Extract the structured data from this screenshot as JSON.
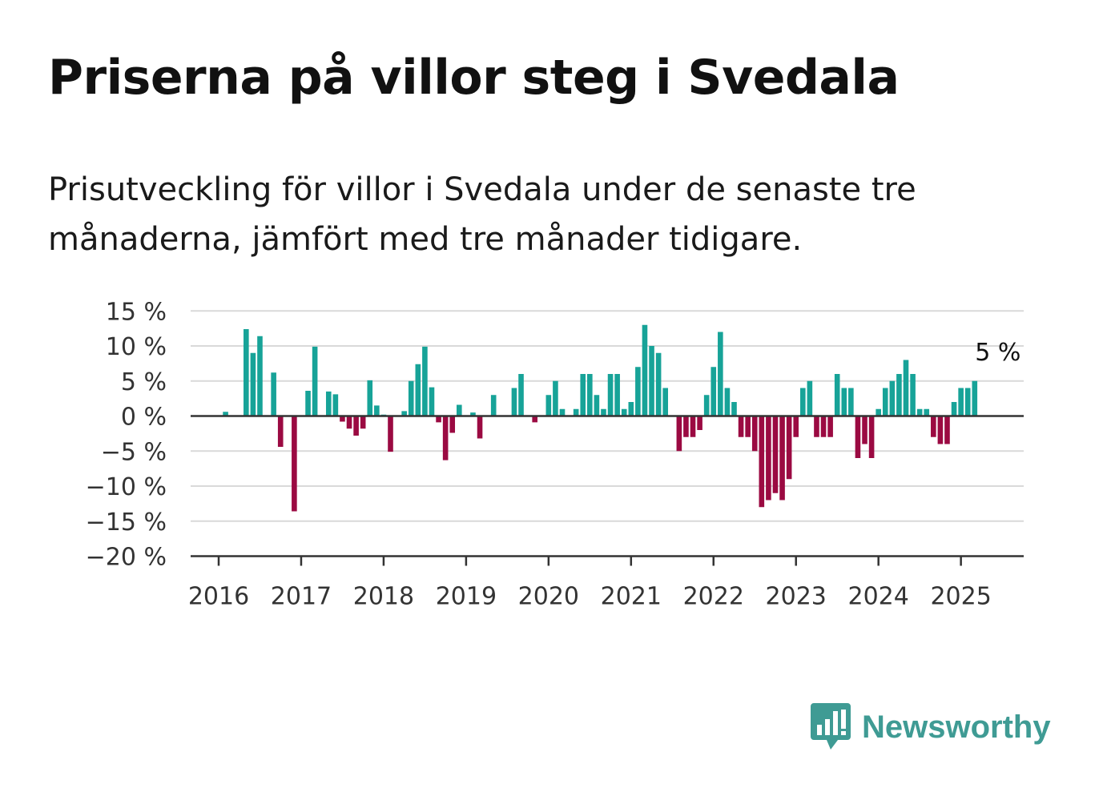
{
  "title": "Priserna på villor steg i Svedala",
  "subtitle": "Prisutveckling för villor i Svedala under de senaste tre månaderna, jämfört med tre månader tidigare.",
  "brand": {
    "name": "Newsworthy",
    "icon": "newsworthy-logo-icon",
    "color": "#3f9b94"
  },
  "chart_data": {
    "type": "bar",
    "title": "",
    "xlabel": "",
    "ylabel": "",
    "ylim": [
      -20,
      15
    ],
    "yticks": [
      15,
      10,
      5,
      0,
      -5,
      -10,
      -15,
      -20
    ],
    "ytick_labels": [
      "15 %",
      "10 %",
      "5 %",
      "0 %",
      "−5 %",
      "−10 %",
      "−15 %",
      "−20 %"
    ],
    "xticks": [
      "2016",
      "2017",
      "2018",
      "2019",
      "2020",
      "2021",
      "2022",
      "2023",
      "2024",
      "2025"
    ],
    "grid": true,
    "legend": "none",
    "colors": {
      "positive": "#17a398",
      "negative": "#9b0a42",
      "grid": "#d9d9d9",
      "axis": "#333333",
      "text": "#333333"
    },
    "annotation": {
      "text": "5 %",
      "attached_to": "last-bar"
    },
    "series": [
      {
        "start": "2016-01",
        "frequency": "monthly",
        "values": [
          0,
          0.6,
          0,
          0,
          12.4,
          9,
          11.4,
          0,
          6.2,
          -4.4,
          0,
          -13.6,
          0,
          3.6,
          9.9,
          0,
          3.5,
          3.1,
          -0.8,
          -1.8,
          -2.8,
          -1.8,
          5.1,
          1.5,
          0.2,
          -5.1,
          0,
          0.7,
          5,
          7.4,
          9.9,
          4.1,
          -0.9,
          -6.3,
          -2.4,
          1.6,
          0,
          0.5,
          -3.2,
          0,
          3,
          0,
          0,
          4,
          6,
          0,
          -0.9,
          0,
          3,
          5,
          1,
          0,
          1,
          6,
          6,
          3,
          1,
          6,
          6,
          1,
          2,
          7,
          13,
          10,
          9,
          4,
          0,
          -5,
          -3,
          -3,
          -2,
          3,
          7,
          12,
          4,
          2,
          -3,
          -3,
          -5,
          -13,
          -12,
          -11,
          -12,
          -9,
          -3,
          4,
          5,
          -3,
          -3,
          -3,
          6,
          4,
          4,
          -6,
          -4,
          -6,
          1,
          4,
          5,
          6,
          8,
          6,
          1,
          1,
          -3,
          -4,
          -4,
          2,
          4,
          4,
          5
        ]
      }
    ]
  }
}
